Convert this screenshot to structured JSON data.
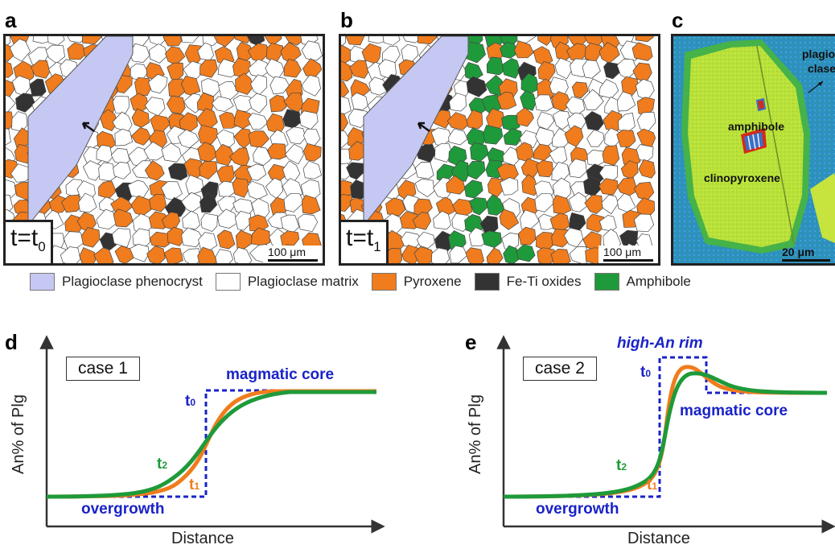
{
  "panels": {
    "a": {
      "letter": "a",
      "time_main": "t=t",
      "time_sub": "0",
      "scale": "100 μm"
    },
    "b": {
      "letter": "b",
      "time_main": "t=t",
      "time_sub": "1",
      "scale": "100 μm"
    },
    "c": {
      "letter": "c",
      "label_plagioclase_1": "plagio-",
      "label_plagioclase_2": "clase",
      "label_amphibole": "amphibole",
      "label_clinopyroxene": "clinopyroxene",
      "scale": "20 μm"
    }
  },
  "legend": [
    {
      "label": "Plagioclase phenocryst",
      "color": "#c5c8f2"
    },
    {
      "label": "Plagioclase matrix",
      "color": "#ffffff"
    },
    {
      "label": "Pyroxene",
      "color": "#f07c1d"
    },
    {
      "label": "Fe-Ti oxides",
      "color": "#333333"
    },
    {
      "label": "Amphibole",
      "color": "#1f9a3a"
    }
  ],
  "graph_d": {
    "letter": "d",
    "case": "case 1",
    "core_label": "magmatic core",
    "overgrowth_label": "overgrowth",
    "xlabel": "Distance",
    "ylabel": "An% of Plg",
    "t0": "t",
    "t0_sub": "0",
    "t1": "t",
    "t1_sub": "1",
    "t2": "t",
    "t2_sub": "2"
  },
  "graph_e": {
    "letter": "e",
    "case": "case 2",
    "rim_label": "high-An rim",
    "core_label": "magmatic core",
    "overgrowth_label": "overgrowth",
    "xlabel": "Distance",
    "ylabel": "An% of Plg",
    "t0": "t",
    "t0_sub": "0",
    "t1": "t",
    "t1_sub": "1",
    "t2": "t",
    "t2_sub": "2"
  },
  "colors": {
    "dashed": "#1a23c7",
    "t1_curve": "#f07c1d",
    "t2_curve": "#1f9a3a"
  }
}
